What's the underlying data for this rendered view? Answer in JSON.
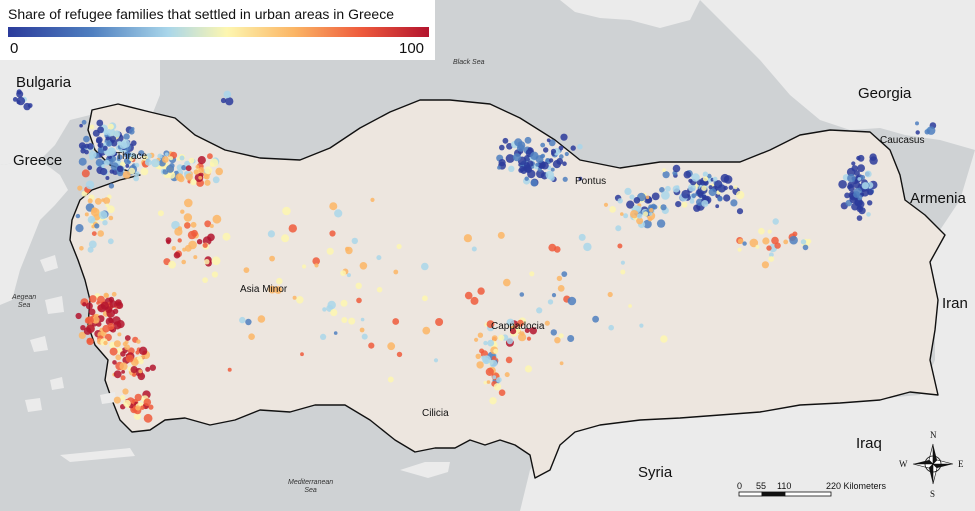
{
  "legend": {
    "title": "Share of refugee families that settled in urban areas in Greece",
    "min": "0",
    "max": "100",
    "colors": [
      "#2b3b9b",
      "#4f7fc0",
      "#a9d6ea",
      "#fdf6b0",
      "#fbb565",
      "#ee5a3c",
      "#b3142e"
    ]
  },
  "labels": {
    "countries": {
      "bulgaria": "Bulgaria",
      "greece": "Greece",
      "georgia": "Georgia",
      "armenia": "Armenia",
      "iran": "Iran",
      "iraq": "Iraq",
      "syria": "Syria"
    },
    "regions": {
      "thrace": "Thrace",
      "pontus": "Pontus",
      "caucasus": "Caucasus",
      "asia_minor": "Asia Minor",
      "cappadocia": "Cappadocia",
      "cilicia": "Cilicia"
    },
    "seas": {
      "black_sea": "Black Sea",
      "aegean_line1": "Aegean",
      "aegean_line2": "Sea",
      "med_line1": "Mediterranean",
      "med_line2": "Sea"
    }
  },
  "scale_bar": {
    "ticks": [
      "0",
      "55",
      "110",
      "220 Kilometers"
    ]
  },
  "compass": {
    "n": "N",
    "s": "S",
    "e": "E",
    "w": "W"
  },
  "colors": {
    "water": "#cfd2d4",
    "land_other": "#ebebeb",
    "turkey": "#ede6df",
    "border": "#111111"
  }
}
